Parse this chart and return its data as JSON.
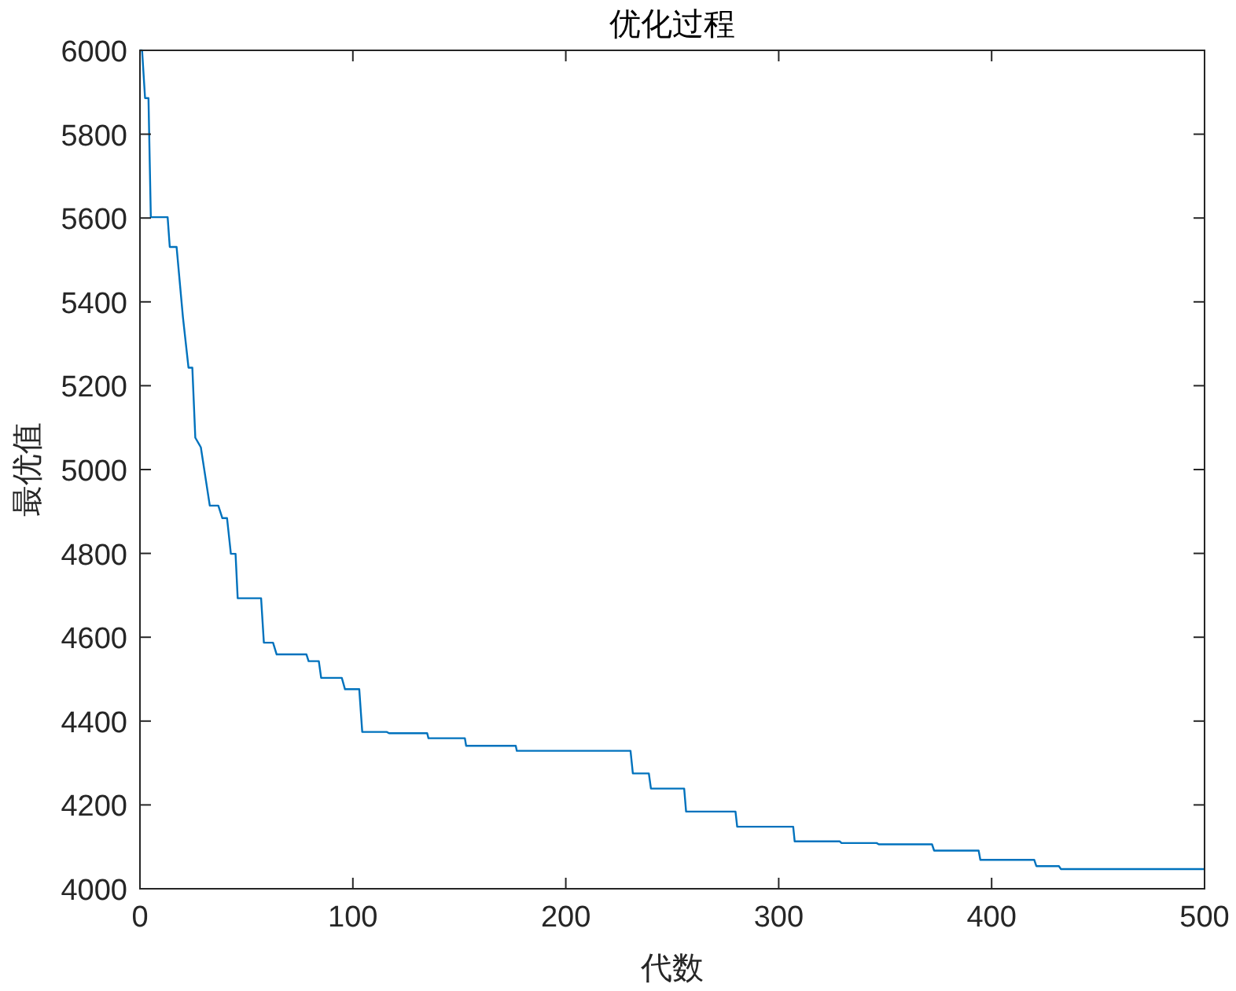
{
  "chart_data": {
    "type": "line",
    "title": "优化过程",
    "xlabel": "代数",
    "ylabel": "最优值",
    "xlim": [
      0,
      500
    ],
    "ylim": [
      4000,
      6000
    ],
    "xticks": [
      0,
      100,
      200,
      300,
      400,
      500
    ],
    "yticks": [
      4000,
      4200,
      4400,
      4600,
      4800,
      5000,
      5200,
      5400,
      5600,
      5800,
      6000
    ],
    "grid": false,
    "series": [
      {
        "color": "#0072bd",
        "x": [
          0,
          1,
          2.4,
          4,
          5.1,
          13,
          14,
          17.2,
          20.2,
          22.8,
          24.6,
          26,
          28.6,
          32.8,
          36.8,
          38.7,
          40.9,
          42.7,
          44.9,
          45.9,
          56.9,
          58.2,
          62.5,
          64.2,
          78.2,
          79.2,
          84,
          85.1,
          94.8,
          96.3,
          103,
          104.4,
          116,
          117,
          134.9,
          135.5,
          152.6,
          153.2,
          176.5,
          177,
          230.4,
          231.5,
          239,
          240,
          255.6,
          256.5,
          279.7,
          280.5,
          306.8,
          307.5,
          328.7,
          329.5,
          346,
          347,
          372,
          373,
          393.9,
          394.7,
          420,
          421,
          431.6,
          432.5,
          500
        ],
        "values": [
          6000,
          6000,
          5886,
          5886,
          5602,
          5602,
          5531,
          5531,
          5363,
          5243,
          5243,
          5076,
          5053,
          4914,
          4914,
          4884,
          4884,
          4799,
          4799,
          4693,
          4693,
          4587,
          4587,
          4559,
          4559,
          4543,
          4543,
          4503,
          4503,
          4476,
          4476,
          4374,
          4374,
          4371,
          4371,
          4359,
          4359,
          4341,
          4341,
          4329,
          4329,
          4275,
          4275,
          4239,
          4239,
          4184,
          4184,
          4148,
          4148,
          4113,
          4113,
          4109,
          4109,
          4106,
          4106,
          4091,
          4091,
          4069,
          4069,
          4054,
          4054,
          4047,
          4047
        ]
      }
    ]
  }
}
